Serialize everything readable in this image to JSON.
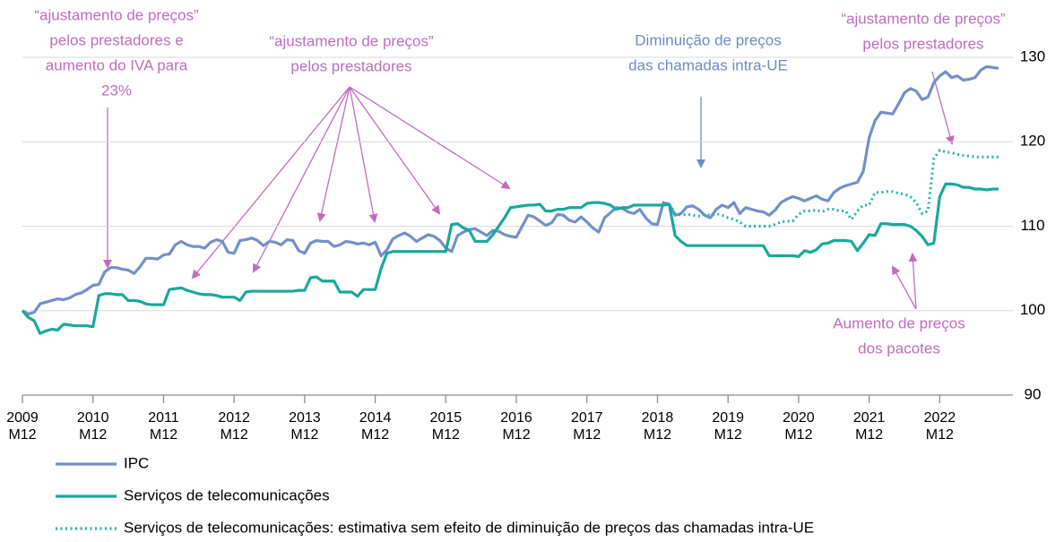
{
  "chart_data": {
    "type": "line",
    "categories": [
      "2009 M12",
      null,
      null,
      null,
      null,
      null,
      null,
      null,
      null,
      null,
      null,
      null,
      "2010 M12",
      null,
      null,
      null,
      null,
      null,
      null,
      null,
      null,
      null,
      null,
      null,
      "2011 M12",
      null,
      null,
      null,
      null,
      null,
      null,
      null,
      null,
      null,
      null,
      null,
      "2012 M12",
      null,
      null,
      null,
      null,
      null,
      null,
      null,
      null,
      null,
      null,
      null,
      "2013 M12",
      null,
      null,
      null,
      null,
      null,
      null,
      null,
      null,
      null,
      null,
      null,
      "2014 M12",
      null,
      null,
      null,
      null,
      null,
      null,
      null,
      null,
      null,
      null,
      null,
      "2015 M12",
      null,
      null,
      null,
      null,
      null,
      null,
      null,
      null,
      null,
      null,
      null,
      "2016 M12",
      null,
      null,
      null,
      null,
      null,
      null,
      null,
      null,
      null,
      null,
      null,
      "2017 M12",
      null,
      null,
      null,
      null,
      null,
      null,
      null,
      null,
      null,
      null,
      null,
      "2018 M12",
      null,
      null,
      null,
      null,
      null,
      null,
      null,
      null,
      null,
      null,
      null,
      "2019 M12",
      null,
      null,
      null,
      null,
      null,
      null,
      null,
      null,
      null,
      null,
      null,
      "2020 M12",
      null,
      null,
      null,
      null,
      null,
      null,
      null,
      null,
      null,
      null,
      null,
      "2021 M12",
      null,
      null,
      null,
      null,
      null,
      null,
      null,
      null,
      null,
      null,
      null,
      "2022 M12",
      null,
      null,
      null,
      null,
      null,
      null,
      null,
      null,
      null,
      null
    ],
    "series": [
      {
        "name": "IPC",
        "color": "#7390c8",
        "dash": "solid",
        "values": [
          100,
          99.6,
          99.8,
          100.8,
          101.0,
          101.2,
          101.4,
          101.3,
          101.5,
          101.9,
          102.1,
          102.5,
          103.0,
          103.1,
          104.6,
          105.1,
          105.1,
          104.9,
          104.8,
          104.4,
          105.2,
          106.2,
          106.2,
          106.1,
          106.6,
          106.7,
          107.8,
          108.2,
          107.8,
          107.6,
          107.6,
          107.4,
          108.1,
          108.4,
          108.2,
          106.9,
          106.8,
          108.3,
          108.4,
          108.6,
          108.3,
          107.7,
          108.2,
          108.1,
          107.8,
          108.4,
          108.3,
          107.1,
          106.8,
          108.0,
          108.3,
          108.2,
          108.2,
          107.6,
          107.8,
          108.2,
          108.1,
          107.9,
          108.0,
          107.8,
          108.1,
          106.5,
          107.2,
          108.5,
          108.9,
          109.2,
          108.8,
          108.2,
          108.6,
          109.0,
          108.8,
          108.3,
          107.4,
          107.0,
          108.9,
          109.3,
          109.6,
          109.7,
          109.3,
          108.9,
          109.5,
          109.4,
          109.0,
          108.8,
          108.7,
          110.0,
          111.3,
          111.1,
          110.6,
          110.1,
          110.4,
          111.4,
          111.3,
          110.7,
          110.5,
          111.1,
          110.5,
          109.8,
          109.3,
          111.0,
          111.6,
          112.2,
          112.1,
          111.7,
          111.5,
          112.0,
          111.0,
          110.3,
          110.2,
          112.8,
          112.6,
          111.3,
          111.5,
          112.3,
          112.4,
          112.0,
          111.3,
          111.0,
          112.0,
          112.5,
          112.2,
          112.8,
          111.5,
          112.2,
          112.0,
          111.8,
          111.7,
          111.3,
          111.9,
          112.8,
          113.2,
          113.5,
          113.3,
          113.0,
          113.3,
          113.6,
          113.2,
          113.0,
          114.0,
          114.5,
          114.8,
          115.0,
          115.2,
          116.5,
          120.5,
          122.5,
          123.5,
          123.4,
          123.3,
          124.5,
          125.8,
          126.3,
          126.0,
          125.0,
          125.3,
          127.0,
          127.8,
          128.3,
          127.6,
          127.8,
          127.3,
          127.4,
          127.6,
          128.5,
          128.9,
          128.8,
          128.7
        ]
      },
      {
        "name": "Serviços de telecomunicações",
        "color": "#1aa89b",
        "dash": "solid",
        "values": [
          100,
          99.2,
          98.8,
          97.3,
          97.6,
          97.8,
          97.7,
          98.4,
          98.3,
          98.2,
          98.2,
          98.2,
          98.1,
          101.8,
          102.0,
          102.0,
          101.9,
          101.9,
          101.2,
          101.2,
          101.1,
          100.8,
          100.7,
          100.7,
          100.7,
          102.5,
          102.6,
          102.7,
          102.4,
          102.2,
          102.0,
          101.9,
          101.9,
          101.8,
          101.6,
          101.6,
          101.6,
          101.2,
          102.2,
          102.3,
          102.3,
          102.3,
          102.3,
          102.3,
          102.3,
          102.3,
          102.3,
          102.4,
          102.4,
          103.9,
          104.0,
          103.5,
          103.5,
          103.5,
          102.2,
          102.2,
          102.2,
          101.7,
          102.5,
          102.5,
          102.5,
          105.0,
          106.8,
          107.0,
          107.0,
          107.0,
          107.0,
          107.0,
          107.0,
          107.0,
          107.0,
          107.0,
          107.0,
          110.2,
          110.3,
          109.8,
          109.5,
          108.2,
          108.2,
          108.2,
          109.0,
          110.0,
          111.0,
          112.2,
          112.3,
          112.4,
          112.5,
          112.5,
          112.6,
          111.8,
          111.8,
          112.0,
          112.0,
          112.2,
          112.2,
          112.2,
          112.7,
          112.8,
          112.8,
          112.7,
          112.5,
          112.0,
          112.2,
          112.2,
          112.5,
          112.5,
          112.5,
          112.5,
          112.5,
          112.5,
          112.6,
          108.9,
          108.2,
          107.7,
          107.7,
          107.7,
          107.7,
          107.7,
          107.7,
          107.7,
          107.7,
          107.7,
          107.7,
          107.7,
          107.7,
          107.7,
          107.7,
          106.5,
          106.5,
          106.5,
          106.5,
          106.5,
          106.4,
          107.1,
          106.9,
          107.2,
          107.9,
          108.0,
          108.3,
          108.3,
          108.3,
          108.2,
          107.1,
          108.0,
          109.0,
          108.9,
          110.3,
          110.3,
          110.2,
          110.2,
          110.2,
          110.0,
          109.5,
          108.8,
          107.8,
          108.0,
          113.5,
          115.0,
          115.0,
          114.9,
          114.6,
          114.6,
          114.4,
          114.4,
          114.3,
          114.4,
          114.4
        ]
      },
      {
        "name": "Serviços de telecomunicações: estimativa sem efeito de diminuição de preços das chamadas intra-UE",
        "color": "#22b3a5",
        "dash": "dotted",
        "values": [
          null,
          null,
          null,
          null,
          null,
          null,
          null,
          null,
          null,
          null,
          null,
          null,
          null,
          null,
          null,
          null,
          null,
          null,
          null,
          null,
          null,
          null,
          null,
          null,
          null,
          null,
          null,
          null,
          null,
          null,
          null,
          null,
          null,
          null,
          null,
          null,
          null,
          null,
          null,
          null,
          null,
          null,
          null,
          null,
          null,
          null,
          null,
          null,
          null,
          null,
          null,
          null,
          null,
          null,
          null,
          null,
          null,
          null,
          null,
          null,
          null,
          null,
          null,
          null,
          null,
          null,
          null,
          null,
          null,
          null,
          null,
          null,
          null,
          null,
          null,
          null,
          null,
          null,
          null,
          null,
          null,
          null,
          null,
          null,
          null,
          null,
          null,
          null,
          null,
          null,
          null,
          null,
          null,
          null,
          null,
          null,
          null,
          null,
          null,
          null,
          null,
          null,
          null,
          null,
          null,
          null,
          null,
          null,
          null,
          null,
          112.6,
          111.5,
          111.3,
          111.4,
          111.3,
          111.2,
          111.4,
          111.3,
          111.5,
          111.3,
          111.0,
          110.8,
          110.5,
          110.0,
          110.0,
          110.0,
          110.0,
          110.0,
          110.2,
          110.5,
          110.6,
          110.6,
          111.4,
          111.8,
          111.8,
          111.9,
          111.7,
          112.0,
          112.0,
          111.8,
          111.8,
          110.8,
          111.8,
          112.5,
          112.5,
          114.0,
          114.0,
          114.1,
          114.1,
          113.9,
          113.8,
          113.5,
          112.8,
          111.5,
          111.8,
          118.0,
          119.0,
          118.8,
          118.7,
          118.5,
          118.4,
          118.3,
          118.2,
          118.2,
          118.2,
          118.2,
          118.2
        ]
      }
    ],
    "ylim": [
      90,
      130
    ],
    "yticks": [
      90,
      100,
      110,
      120,
      130
    ],
    "grid": true,
    "y_axis_side": "right",
    "annotations": [
      {
        "lines": [
          "“ajustamento de preços”",
          "pelos prestadores e",
          "aumento do IVA para",
          "23%"
        ],
        "color": "#bf6dbd"
      },
      {
        "lines": [
          "“ajustamento de preços”",
          "pelos prestadores"
        ],
        "color": "#bf6dbd"
      },
      {
        "lines": [
          "Diminuição de preços",
          "das chamadas intra-UE"
        ],
        "color": "#6e8cc2"
      },
      {
        "lines": [
          "“ajustamento de preços”",
          "pelos prestadores"
        ],
        "color": "#bf6dbd"
      },
      {
        "lines": [
          "Aumento de preços",
          "dos pacotes"
        ],
        "color": "#bf6dbd"
      }
    ]
  }
}
